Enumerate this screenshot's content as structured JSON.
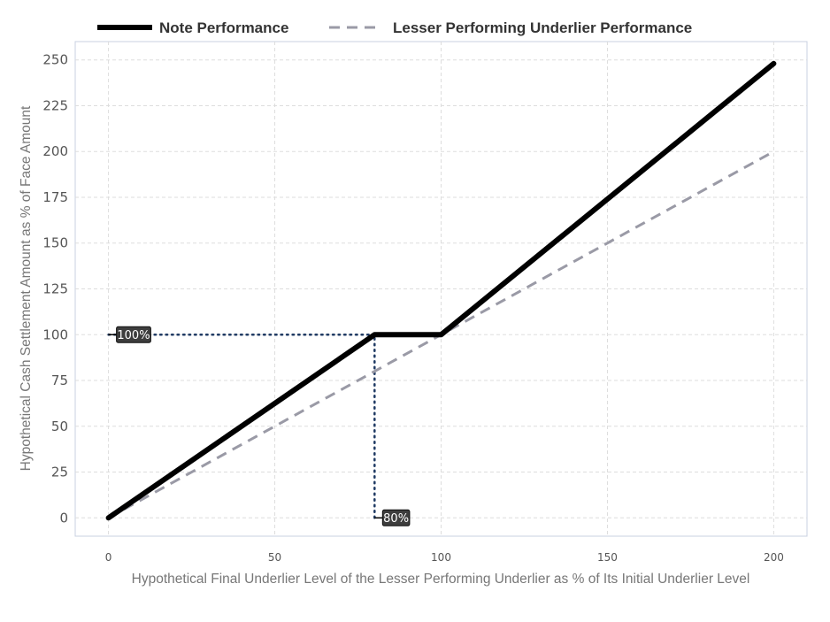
{
  "chart_data": {
    "type": "line",
    "xlabel": "Hypothetical Final Underlier Level of the Lesser Performing Underlier as % of Its Initial Underlier Level",
    "ylabel": "Hypothetical Cash Settlement Amount as % of Face Amount",
    "xlim": [
      -10,
      210
    ],
    "ylim": [
      -10,
      260
    ],
    "x_ticks": [
      "0",
      "50",
      "100",
      "150",
      "200"
    ],
    "y_ticks": [
      "0",
      "25",
      "50",
      "75",
      "100",
      "125",
      "150",
      "175",
      "200",
      "225",
      "250"
    ],
    "grid": true,
    "legend_position": "top",
    "series": [
      {
        "name": "Note Performance",
        "style": "solid",
        "color": "#000000",
        "x": [
          0,
          80,
          100,
          200
        ],
        "y": [
          0,
          100,
          100,
          248
        ]
      },
      {
        "name": "Lesser Performing Underlier Performance",
        "style": "dashed",
        "color": "#9a9aa6",
        "x": [
          0,
          200
        ],
        "y": [
          0,
          200
        ]
      }
    ],
    "annotations": [
      {
        "label": "100%",
        "guide": "horizontal",
        "x_from": 0,
        "x_to": 80,
        "y": 100
      },
      {
        "label": "80%",
        "guide": "vertical",
        "x": 80,
        "y_from": 0,
        "y_to": 100
      }
    ],
    "colors": {
      "guide": "#1f3a63",
      "callout_bg": "#3d3d3d",
      "grid": "#dddddd",
      "frame": "#c8d0e0"
    }
  }
}
